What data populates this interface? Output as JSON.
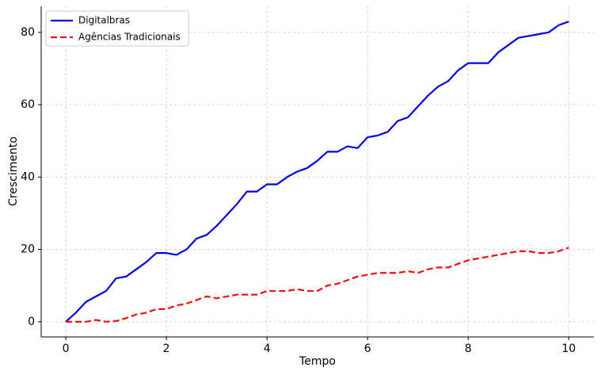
{
  "chart_data": {
    "type": "line",
    "x_label": "Tempo",
    "y_label": "Crescimento",
    "x": [
      0,
      0.2,
      0.4,
      0.6,
      0.8,
      1.0,
      1.2,
      1.4,
      1.6,
      1.8,
      2.0,
      2.2,
      2.4,
      2.6,
      2.8,
      3.0,
      3.2,
      3.4,
      3.6,
      3.8,
      4.0,
      4.2,
      4.4,
      4.6,
      4.8,
      5.0,
      5.2,
      5.4,
      5.6,
      5.8,
      6.0,
      6.2,
      6.4,
      6.6,
      6.8,
      7.0,
      7.2,
      7.4,
      7.6,
      7.8,
      8.0,
      8.2,
      8.4,
      8.6,
      8.8,
      9.0,
      9.2,
      9.4,
      9.6,
      9.8,
      10
    ],
    "series": [
      {
        "name": "Digitalbras",
        "color": "#0000dd",
        "dash": false,
        "values": [
          0,
          2.5,
          5.5,
          7,
          8.5,
          12,
          12.5,
          14.5,
          16.5,
          19,
          19,
          18.5,
          20,
          23,
          24,
          26.5,
          29.5,
          32.5,
          36,
          36,
          38,
          38,
          40,
          41.5,
          42.5,
          44.5,
          47,
          47,
          48.5,
          48,
          51,
          51.5,
          52.5,
          55.5,
          56.5,
          59.5,
          62.5,
          65,
          66.5,
          69.5,
          71.5,
          71.5,
          71.5,
          74.5,
          76.5,
          78.5,
          79,
          79.5,
          80,
          82,
          83
        ]
      },
      {
        "name": "Agências Tradicionais",
        "color": "#ee1111",
        "dash": true,
        "values": [
          0,
          0,
          0,
          0.5,
          0,
          0.2,
          1,
          2,
          2.5,
          3.5,
          3.5,
          4.5,
          5,
          6,
          7,
          6.5,
          7,
          7.5,
          7.5,
          7.5,
          8.5,
          8.5,
          8.5,
          9,
          8.5,
          8.5,
          10,
          10.5,
          11.5,
          12.5,
          13,
          13.5,
          13.5,
          13.5,
          14,
          13.5,
          14.5,
          15,
          15,
          16,
          17,
          17.5,
          18,
          18.5,
          19,
          19.5,
          19.5,
          19,
          19,
          19.5,
          20.5
        ]
      }
    ],
    "xlim": [
      -0.49,
      10.5
    ],
    "ylim": [
      -4.2,
      87.2
    ],
    "xticks": [
      0,
      2,
      4,
      6,
      8,
      10
    ],
    "yticks": [
      0,
      20,
      40,
      60,
      80
    ],
    "grid": true,
    "legend": "upper-left"
  }
}
